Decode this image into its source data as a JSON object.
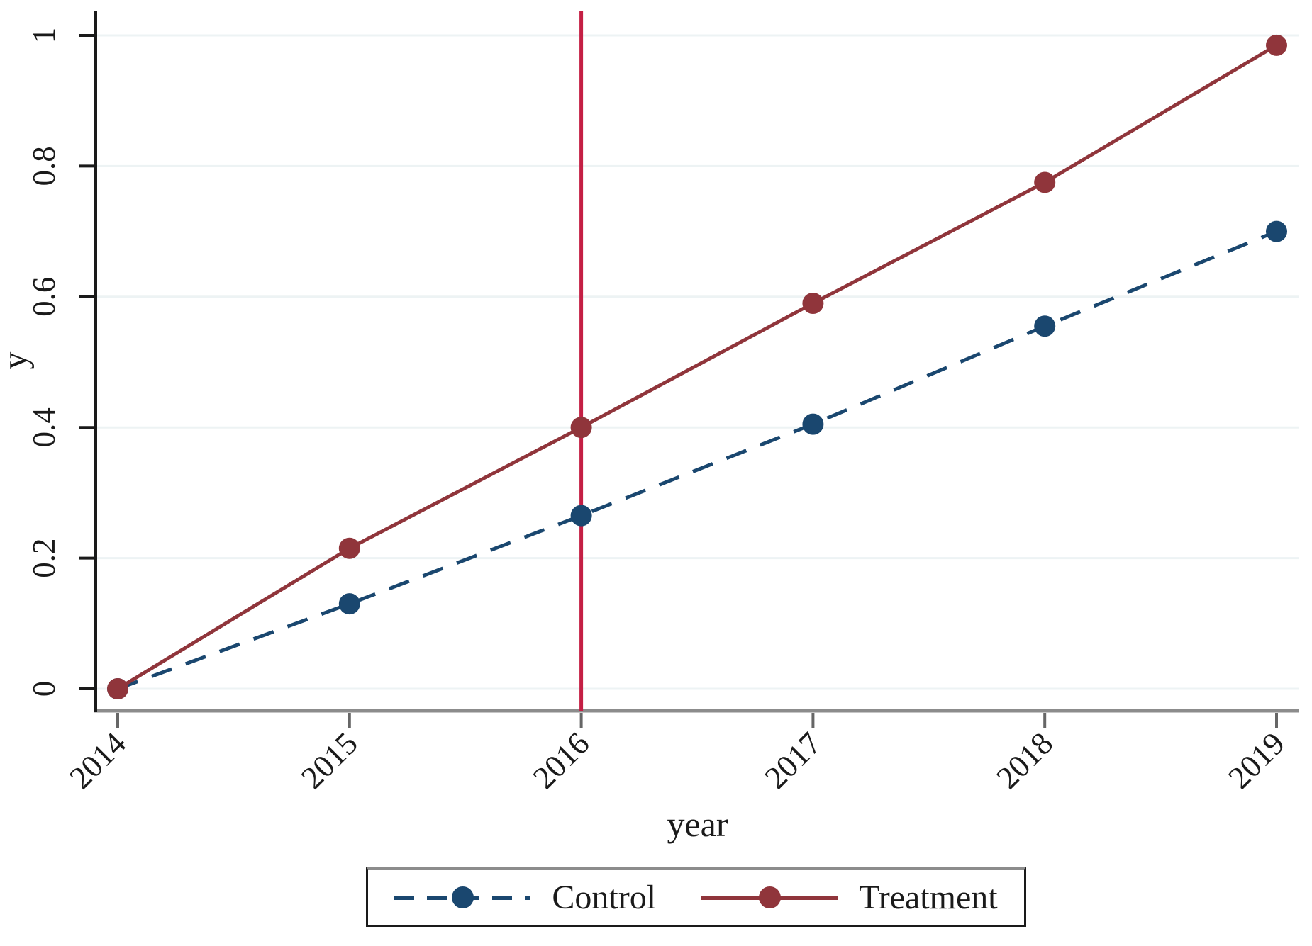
{
  "chart_data": {
    "type": "line",
    "title": "",
    "xlabel": "year",
    "ylabel": "y",
    "x": [
      2014,
      2015,
      2016,
      2017,
      2018,
      2019
    ],
    "xtick_labels": [
      "2014",
      "2015",
      "2016",
      "2017",
      "2018",
      "2019"
    ],
    "ytick_values": [
      0,
      0.2,
      0.4,
      0.6,
      0.8,
      1
    ],
    "ytick_labels": [
      "0",
      "0.2",
      "0.4",
      "0.6",
      "0.8",
      "1"
    ],
    "xlim": [
      2014,
      2019
    ],
    "ylim": [
      0,
      1
    ],
    "grid": "horizontal",
    "legend_position": "bottom",
    "series": [
      {
        "name": "Control",
        "style": "dashed",
        "marker": "circle",
        "color": "#1a476f",
        "values": [
          0,
          0.13,
          0.265,
          0.405,
          0.555,
          0.7
        ]
      },
      {
        "name": "Treatment",
        "style": "solid",
        "marker": "circle",
        "color": "#90353b",
        "values": [
          0,
          0.215,
          0.4,
          0.59,
          0.775,
          0.985
        ]
      }
    ],
    "annotations": [
      {
        "type": "vline",
        "x": 2016,
        "color": "#c41f44"
      }
    ]
  },
  "colors": {
    "grid": "#edf3f4",
    "axis": "#1a1a1a",
    "axis_bottom": "#8c8c8c",
    "xtick": "#666666",
    "text": "#1a1a1a",
    "background": "#ffffff"
  }
}
